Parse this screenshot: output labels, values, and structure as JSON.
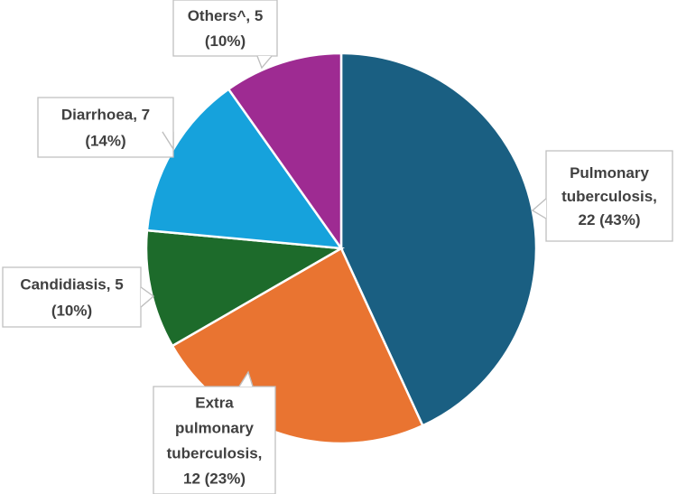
{
  "chart_data": {
    "type": "pie",
    "title": "",
    "slices": [
      {
        "name": "Pulmonary tuberculosis",
        "value": 22,
        "percent": 43,
        "color": "#1a5f82",
        "label_lines": [
          "Pulmonary",
          "tuberculosis,",
          "22 (43%)"
        ]
      },
      {
        "name": "Extra pulmonary tuberculosis",
        "value": 12,
        "percent": 23,
        "color": "#e97431",
        "label_lines": [
          "Extra",
          "pulmonary",
          "tuberculosis,",
          "12 (23%)"
        ]
      },
      {
        "name": "Candidiasis",
        "value": 5,
        "percent": 10,
        "color": "#1d6b2b",
        "label_lines": [
          "Candidiasis, 5",
          "(10%)"
        ]
      },
      {
        "name": "Diarrhoea",
        "value": 7,
        "percent": 14,
        "color": "#16a2dc",
        "label_lines": [
          "Diarrhoea, 7",
          "(14%)"
        ]
      },
      {
        "name": "Others^",
        "value": 5,
        "percent": 10,
        "color": "#9e2b92",
        "label_lines": [
          "Others^, 5",
          "(10%)"
        ]
      }
    ],
    "start": "12 o'clock",
    "direction": "clockwise",
    "legend": "none",
    "data_labels": "callouts"
  }
}
